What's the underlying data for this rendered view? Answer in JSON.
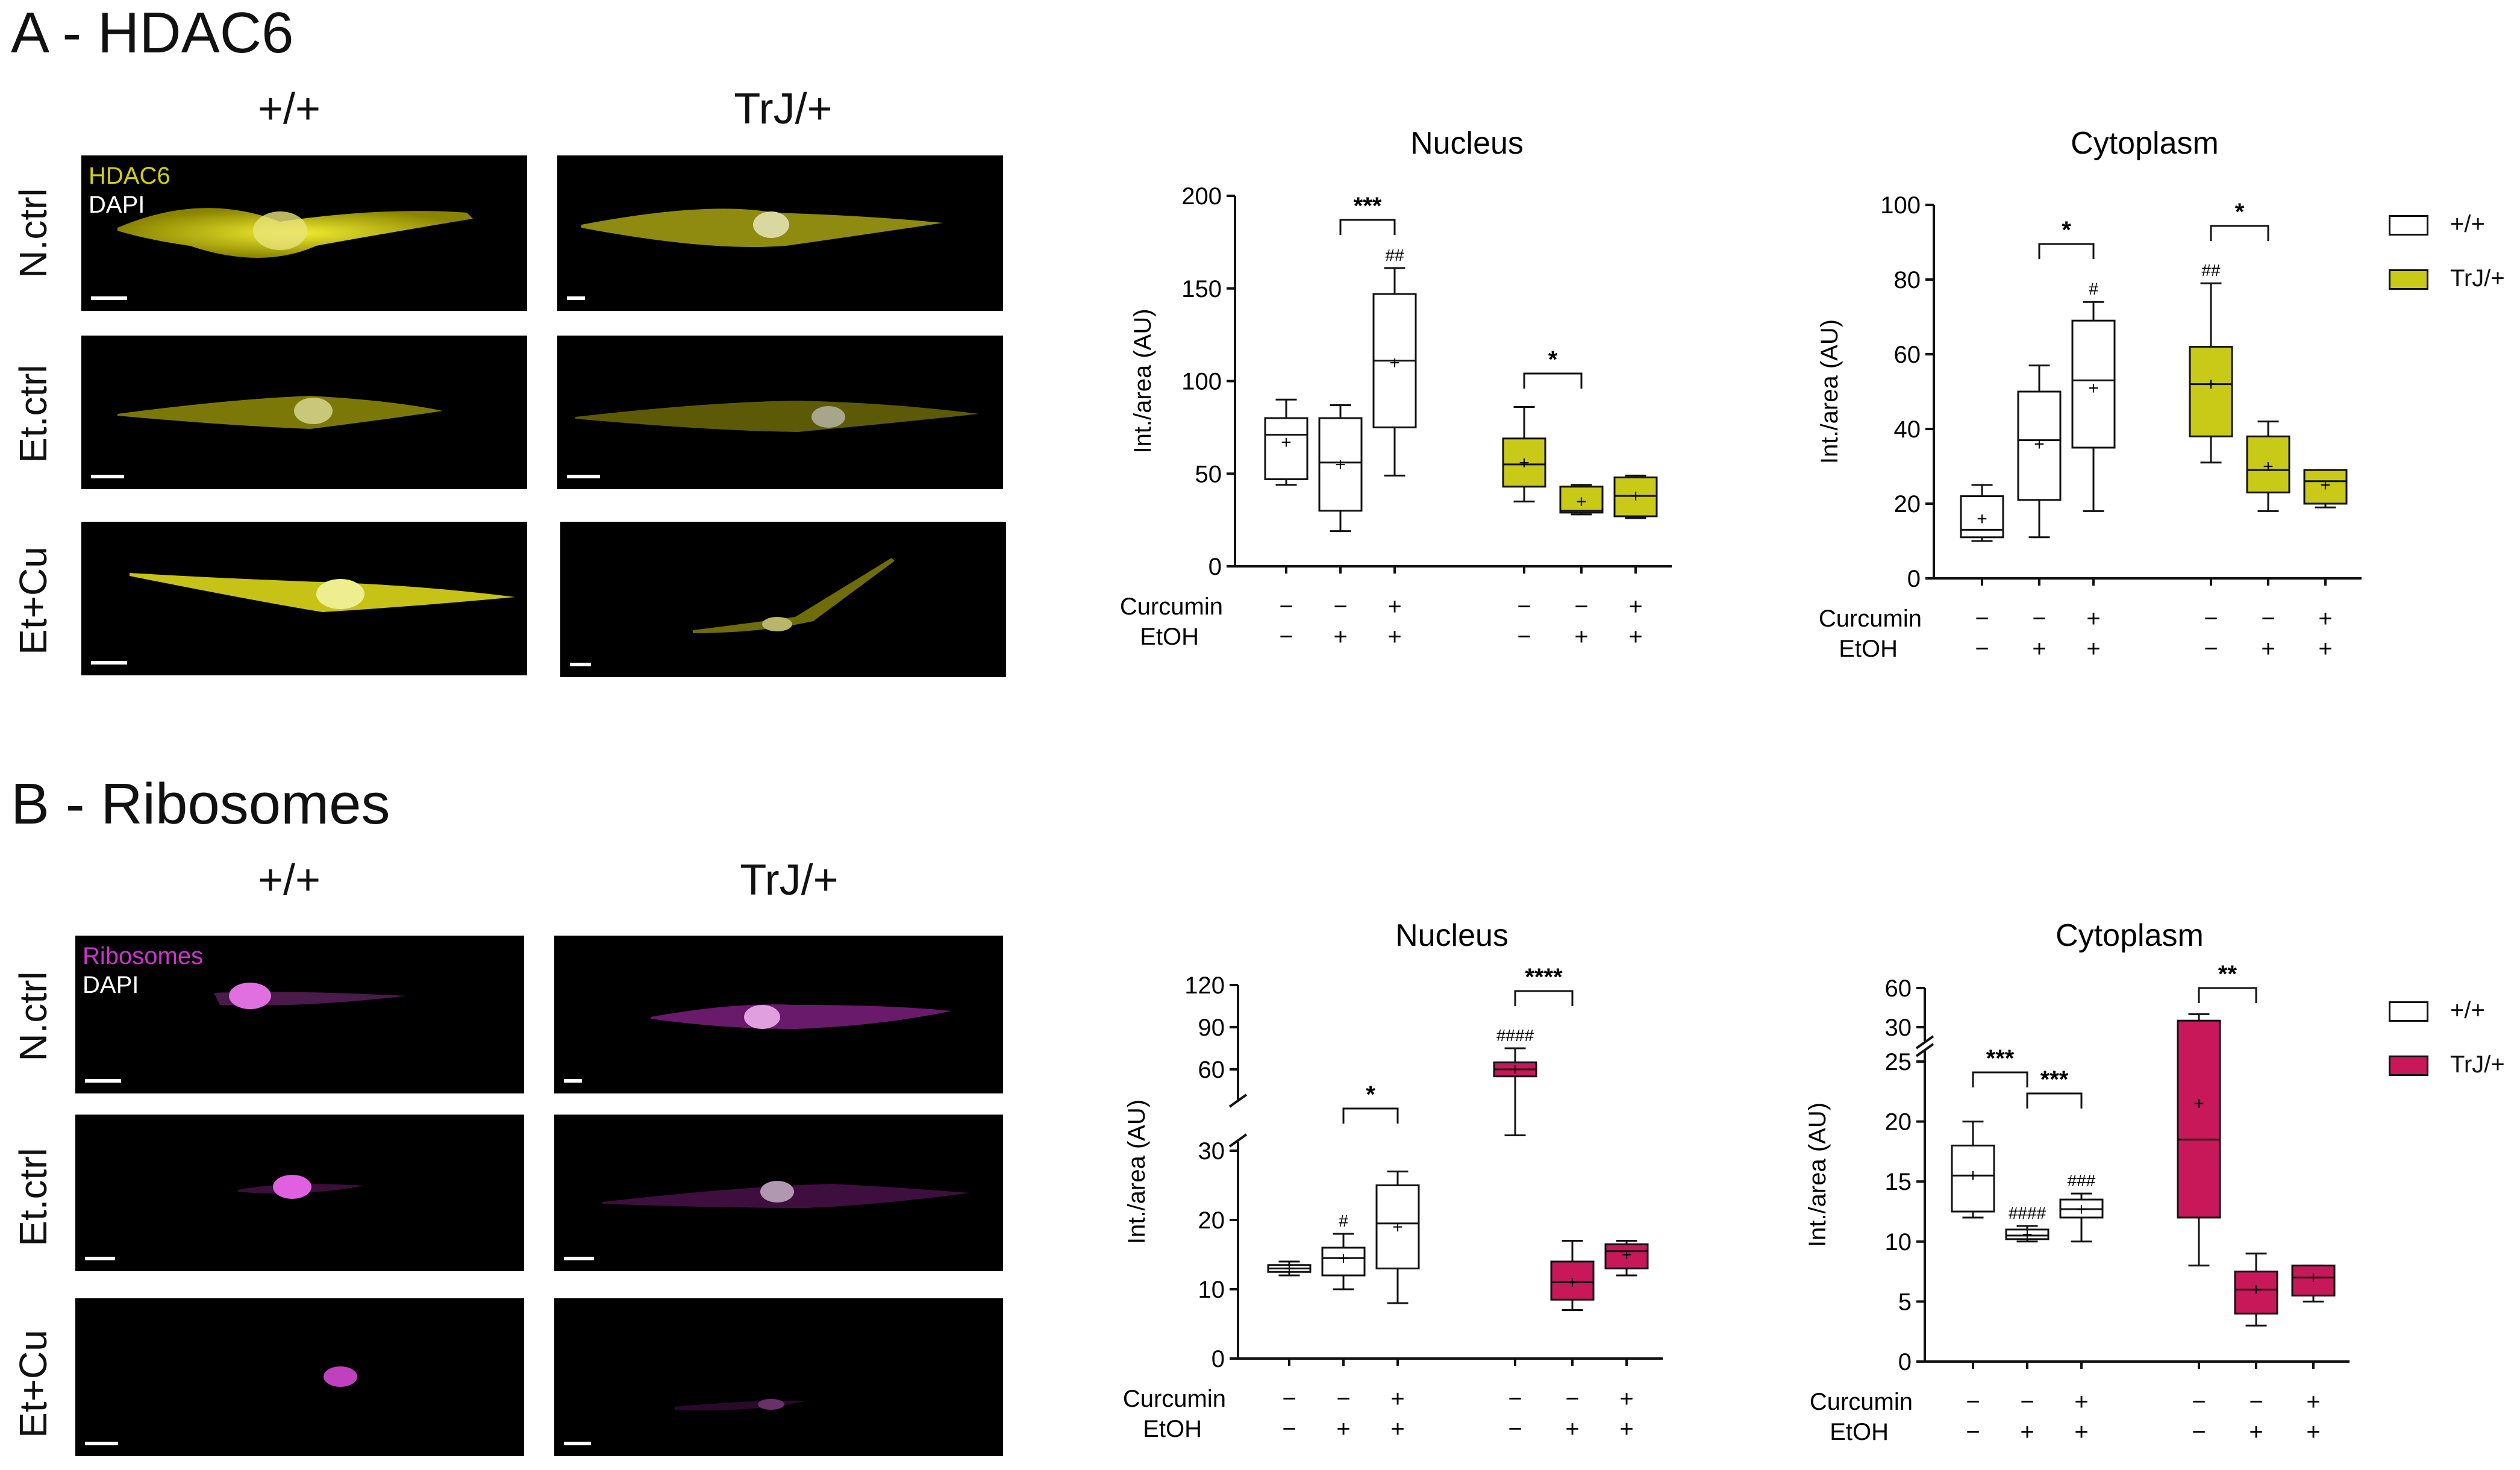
{
  "panelA": {
    "title": "A - HDAC6",
    "col_wt": "+/+",
    "col_trj": "TrJ/+",
    "rows": [
      "N.ctrl",
      "Et.ctrl",
      "Et+Cu"
    ],
    "chan1": "HDAC6",
    "chan2": "DAPI",
    "chan_color": "#d4d000"
  },
  "panelB": {
    "title": "B - Ribosomes",
    "col_wt": "+/+",
    "col_trj": "TrJ/+",
    "rows": [
      "N.ctrl",
      "Et.ctrl",
      "Et+Cu"
    ],
    "chan1": "Ribosomes",
    "chan2": "DAPI",
    "chan_color": "#cc33cc"
  },
  "legendA": {
    "wt": "+/+",
    "trj": "TrJ/+",
    "trj_color": "#c9c918"
  },
  "legendB": {
    "wt": "+/+",
    "trj": "TrJ/+",
    "trj_color": "#c8185a"
  },
  "chart_data": [
    {
      "type": "box",
      "title": "Nucleus",
      "ylabel": "Int./area (AU)",
      "ylim": [
        0,
        200
      ],
      "yticks": [
        "0",
        "50",
        "100",
        "150",
        "200"
      ],
      "treatment_labels": {
        "curcumin": "Curcumin",
        "etoh": "EtOH"
      },
      "curcumin": [
        "−",
        "−",
        "+",
        "−",
        "−",
        "+"
      ],
      "etoh": [
        "−",
        "+",
        "+",
        "−",
        "+",
        "+"
      ],
      "boxes": [
        {
          "group": "+/+",
          "min": 44,
          "q1": 47,
          "median": 71,
          "q3": 80,
          "max": 90,
          "mean": 67
        },
        {
          "group": "+/+",
          "min": 19,
          "q1": 30,
          "median": 56,
          "q3": 80,
          "max": 87,
          "mean": 55
        },
        {
          "group": "+/+",
          "min": 49,
          "q1": 75,
          "median": 111,
          "q3": 147,
          "max": 161,
          "mean": 110,
          "mark": "##"
        },
        {
          "group": "TrJ/+",
          "min": 35,
          "q1": 43,
          "median": 55,
          "q3": 69,
          "max": 86,
          "mean": 56
        },
        {
          "group": "TrJ/+",
          "min": 28,
          "q1": 29,
          "median": 30,
          "q3": 43,
          "max": 44,
          "mean": 35
        },
        {
          "group": "TrJ/+",
          "min": 26,
          "q1": 27,
          "median": 38,
          "q3": 48,
          "max": 49,
          "mean": 38
        }
      ],
      "brackets": [
        {
          "from": 1,
          "to": 2,
          "label": "***"
        },
        {
          "from": 3,
          "to": 4,
          "label": "*"
        }
      ]
    },
    {
      "type": "box",
      "title": "Cytoplasm",
      "ylabel": "Int./area (AU)",
      "ylim": [
        0,
        100
      ],
      "yticks": [
        "0",
        "20",
        "40",
        "60",
        "80",
        "100"
      ],
      "treatment_labels": {
        "curcumin": "Curcumin",
        "etoh": "EtOH"
      },
      "curcumin": [
        "−",
        "−",
        "+",
        "−",
        "−",
        "+"
      ],
      "etoh": [
        "−",
        "+",
        "+",
        "−",
        "+",
        "+"
      ],
      "boxes": [
        {
          "group": "+/+",
          "min": 10,
          "q1": 11,
          "median": 13,
          "q3": 22,
          "max": 25,
          "mean": 16
        },
        {
          "group": "+/+",
          "min": 11,
          "q1": 21,
          "median": 37,
          "q3": 50,
          "max": 57,
          "mean": 36
        },
        {
          "group": "+/+",
          "min": 18,
          "q1": 35,
          "median": 53,
          "q3": 69,
          "max": 74,
          "mean": 51,
          "mark": "#"
        },
        {
          "group": "TrJ/+",
          "min": 31,
          "q1": 38,
          "median": 52,
          "q3": 62,
          "max": 79,
          "mean": 52,
          "mark": "##"
        },
        {
          "group": "TrJ/+",
          "min": 18,
          "q1": 23,
          "median": 29,
          "q3": 38,
          "max": 42,
          "mean": 30
        },
        {
          "group": "TrJ/+",
          "min": 19,
          "q1": 20,
          "median": 26,
          "q3": 29,
          "max": 29,
          "mean": 25
        }
      ],
      "brackets": [
        {
          "from": 1,
          "to": 2,
          "label": "*"
        },
        {
          "from": 3,
          "to": 4,
          "label": "*"
        }
      ]
    },
    {
      "type": "box",
      "title": "Nucleus",
      "ylabel": "Int./area (AU)",
      "yticks_lower": [
        "0",
        "10",
        "20",
        "30"
      ],
      "yticks_upper": [
        "60",
        "90",
        "120"
      ],
      "axis_break": [
        30,
        50
      ],
      "treatment_labels": {
        "curcumin": "Curcumin",
        "etoh": "EtOH"
      },
      "curcumin": [
        "−",
        "−",
        "+",
        "−",
        "−",
        "+"
      ],
      "etoh": [
        "−",
        "+",
        "+",
        "−",
        "+",
        "+"
      ],
      "boxes": [
        {
          "group": "+/+",
          "min": 12,
          "q1": 12.5,
          "median": 13,
          "q3": 13.5,
          "max": 14,
          "mean": 13
        },
        {
          "group": "+/+",
          "min": 10,
          "q1": 12,
          "median": 14.5,
          "q3": 16,
          "max": 18,
          "mean": 14.5,
          "mark": "#"
        },
        {
          "group": "+/+",
          "min": 8,
          "q1": 13,
          "median": 19.5,
          "q3": 25,
          "max": 27,
          "mean": 19
        },
        {
          "group": "TrJ/+",
          "min": 47,
          "q1": 55,
          "median": 60,
          "q3": 65,
          "max": 75,
          "mean": 60,
          "mark": "####"
        },
        {
          "group": "TrJ/+",
          "min": 7,
          "q1": 8.5,
          "median": 11,
          "q3": 14,
          "max": 17,
          "mean": 11
        },
        {
          "group": "TrJ/+",
          "min": 12,
          "q1": 13,
          "median": 15.5,
          "q3": 16.5,
          "max": 17,
          "mean": 15
        }
      ],
      "brackets": [
        {
          "from": 1,
          "to": 2,
          "label": "*"
        },
        {
          "from": 3,
          "to": 4,
          "label": "****"
        }
      ]
    },
    {
      "type": "box",
      "title": "Cytoplasm",
      "ylabel": "Int./area (AU)",
      "yticks_lower": [
        "0",
        "5",
        "10",
        "15",
        "20",
        "25"
      ],
      "yticks_upper": [
        "30",
        "60"
      ],
      "axis_break": [
        25,
        30
      ],
      "treatment_labels": {
        "curcumin": "Curcumin",
        "etoh": "EtOH"
      },
      "curcumin": [
        "−",
        "−",
        "+",
        "−",
        "−",
        "+"
      ],
      "etoh": [
        "−",
        "+",
        "+",
        "−",
        "+",
        "+"
      ],
      "boxes": [
        {
          "group": "+/+",
          "min": 12,
          "q1": 12.5,
          "median": 15.5,
          "q3": 18,
          "max": 20,
          "mean": 15.5
        },
        {
          "group": "+/+",
          "min": 10,
          "q1": 10.2,
          "median": 10.5,
          "q3": 11,
          "max": 11.3,
          "mean": 10.6,
          "mark": "####"
        },
        {
          "group": "+/+",
          "min": 10,
          "q1": 12,
          "median": 12.7,
          "q3": 13.5,
          "max": 14,
          "mean": 12.7,
          "mark": "###"
        },
        {
          "group": "TrJ/+",
          "min": 8,
          "q1": 12,
          "median": 18.5,
          "q3": 35,
          "max": 40,
          "mean": 21.5
        },
        {
          "group": "TrJ/+",
          "min": 3,
          "q1": 4,
          "median": 6,
          "q3": 7.5,
          "max": 9,
          "mean": 6
        },
        {
          "group": "TrJ/+",
          "min": 5,
          "q1": 5.5,
          "median": 7,
          "q3": 8,
          "max": 8,
          "mean": 7
        }
      ],
      "brackets": [
        {
          "from": 0,
          "to": 1,
          "label": "***"
        },
        {
          "from": 1,
          "to": 2,
          "label": "***"
        },
        {
          "from": 3,
          "to": 4,
          "label": "**"
        }
      ]
    }
  ]
}
